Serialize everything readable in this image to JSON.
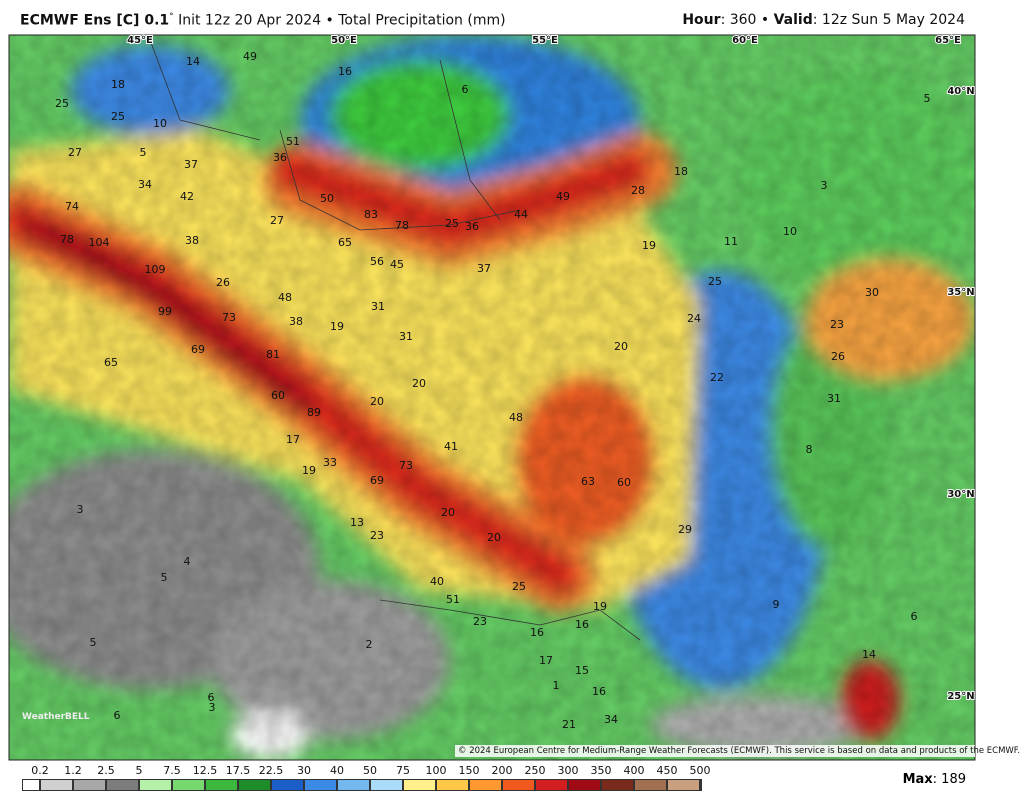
{
  "header": {
    "model": "ECMWF Ens [C] 0.1",
    "degree": "°",
    "rest": " Init 12z 20 Apr 2024 • Total Precipitation (mm)",
    "hour_label": "Hour",
    "hour_value": ": 360 • ",
    "valid_label": "Valid",
    "valid_value": ": 12z Sun 5 May 2024"
  },
  "map": {
    "lon_labels": [
      "45°E",
      "50°E",
      "55°E",
      "60°E",
      "65°E"
    ],
    "lat_labels": [
      "40°N",
      "35°N",
      "30°N",
      "25°N"
    ],
    "labels": [
      "49",
      "14",
      "16",
      "18",
      "25",
      "25",
      "10",
      "6",
      "5",
      "27",
      "36",
      "51",
      "5",
      "37",
      "34",
      "42",
      "50",
      "83",
      "78",
      "25",
      "36",
      "44",
      "49",
      "28",
      "18",
      "3",
      "74",
      "27",
      "78",
      "104",
      "38",
      "65",
      "19",
      "11",
      "10",
      "56",
      "45",
      "37",
      "109",
      "26",
      "25",
      "30",
      "48",
      "31",
      "99",
      "73",
      "38",
      "19",
      "24",
      "23",
      "31",
      "69",
      "20",
      "65",
      "81",
      "26",
      "22",
      "20",
      "60",
      "31",
      "20",
      "89",
      "48",
      "17",
      "41",
      "8",
      "19",
      "33",
      "73",
      "69",
      "63",
      "60",
      "3",
      "20",
      "13",
      "29",
      "23",
      "20",
      "4",
      "5",
      "40",
      "25",
      "51",
      "9",
      "6",
      "19",
      "23",
      "16",
      "16",
      "2",
      "5",
      "14",
      "17",
      "15",
      "16",
      "1",
      "6",
      "3",
      "6",
      "21",
      "34"
    ],
    "copyright": "© 2024 European Centre for Medium-Range Weather Forecasts (ECMWF). This service is based on data and products of the ECMWF.",
    "logo": "WeatherBELL"
  },
  "legend": {
    "values": [
      "0.2",
      "1.2",
      "2.5",
      "5",
      "7.5",
      "12.5",
      "17.5",
      "22.5",
      "30",
      "40",
      "50",
      "75",
      "100",
      "150",
      "200",
      "250",
      "300",
      "350",
      "400",
      "450",
      "500"
    ],
    "colors": [
      "#ffffff",
      "#d0d0d0",
      "#a8a8a8",
      "#7c7c7c",
      "#b4f0a8",
      "#78d870",
      "#3cb83c",
      "#1e8c28",
      "#1c5ec8",
      "#3a8ae6",
      "#74b8f0",
      "#a8dcf8",
      "#fff08c",
      "#ffc848",
      "#ff9830",
      "#f05a1e",
      "#d21e1e",
      "#a00a14",
      "#7a2a1a",
      "#a07050",
      "#c8a080",
      "#e8ccb0"
    ],
    "max_label": "Max",
    "max_value": ": 189"
  }
}
